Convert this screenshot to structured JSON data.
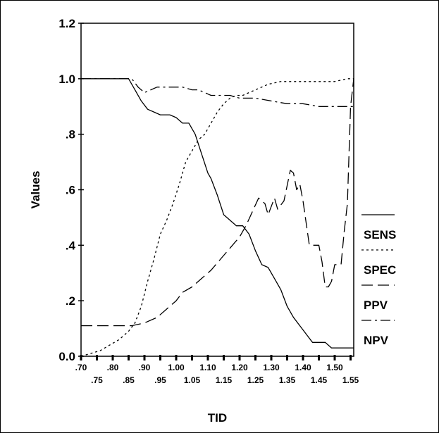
{
  "chart_data": {
    "type": "line",
    "xlabel": "TID",
    "ylabel": "Values",
    "xlim": [
      0.7,
      1.56
    ],
    "ylim": [
      0.0,
      1.2
    ],
    "x_ticks": [
      {
        "v": 0.7,
        "label": ".70",
        "row": 0
      },
      {
        "v": 0.75,
        "label": ".75",
        "row": 1
      },
      {
        "v": 0.8,
        "label": ".80",
        "row": 0
      },
      {
        "v": 0.85,
        "label": ".85",
        "row": 1
      },
      {
        "v": 0.9,
        "label": ".90",
        "row": 0
      },
      {
        "v": 0.95,
        "label": ".95",
        "row": 1
      },
      {
        "v": 1.0,
        "label": "1.00",
        "row": 0
      },
      {
        "v": 1.05,
        "label": "1.05",
        "row": 1
      },
      {
        "v": 1.1,
        "label": "1.10",
        "row": 0
      },
      {
        "v": 1.15,
        "label": "1.15",
        "row": 1
      },
      {
        "v": 1.2,
        "label": "1.20",
        "row": 0
      },
      {
        "v": 1.25,
        "label": "1.25",
        "row": 1
      },
      {
        "v": 1.3,
        "label": "1.30",
        "row": 0
      },
      {
        "v": 1.35,
        "label": "1.35",
        "row": 1
      },
      {
        "v": 1.4,
        "label": "1.40",
        "row": 0
      },
      {
        "v": 1.45,
        "label": "1.45",
        "row": 1
      },
      {
        "v": 1.5,
        "label": "1.50",
        "row": 0
      },
      {
        "v": 1.55,
        "label": "1.55",
        "row": 1
      }
    ],
    "y_ticks": [
      {
        "v": 0.0,
        "label": "0.0"
      },
      {
        "v": 0.2,
        "label": ".2"
      },
      {
        "v": 0.4,
        "label": ".4"
      },
      {
        "v": 0.6,
        "label": ".6"
      },
      {
        "v": 0.8,
        "label": ".8"
      },
      {
        "v": 1.0,
        "label": "1.0"
      },
      {
        "v": 1.2,
        "label": "1.2"
      }
    ],
    "legend_position": "right",
    "series": [
      {
        "name": "SENS",
        "dash": "solid",
        "points": [
          [
            0.7,
            1.0
          ],
          [
            0.85,
            1.0
          ],
          [
            0.87,
            0.96
          ],
          [
            0.89,
            0.92
          ],
          [
            0.91,
            0.89
          ],
          [
            0.93,
            0.88
          ],
          [
            0.95,
            0.87
          ],
          [
            0.98,
            0.87
          ],
          [
            1.0,
            0.86
          ],
          [
            1.02,
            0.84
          ],
          [
            1.04,
            0.84
          ],
          [
            1.06,
            0.8
          ],
          [
            1.08,
            0.73
          ],
          [
            1.1,
            0.66
          ],
          [
            1.11,
            0.64
          ],
          [
            1.13,
            0.58
          ],
          [
            1.15,
            0.51
          ],
          [
            1.17,
            0.49
          ],
          [
            1.19,
            0.47
          ],
          [
            1.21,
            0.47
          ],
          [
            1.23,
            0.44
          ],
          [
            1.25,
            0.38
          ],
          [
            1.27,
            0.33
          ],
          [
            1.29,
            0.32
          ],
          [
            1.31,
            0.28
          ],
          [
            1.33,
            0.24
          ],
          [
            1.35,
            0.18
          ],
          [
            1.37,
            0.14
          ],
          [
            1.39,
            0.11
          ],
          [
            1.41,
            0.08
          ],
          [
            1.43,
            0.05
          ],
          [
            1.47,
            0.05
          ],
          [
            1.49,
            0.03
          ],
          [
            1.56,
            0.03
          ]
        ]
      },
      {
        "name": "SPEC",
        "dash": "dotted",
        "points": [
          [
            0.7,
            0.0
          ],
          [
            0.73,
            0.01
          ],
          [
            0.76,
            0.02
          ],
          [
            0.79,
            0.04
          ],
          [
            0.82,
            0.06
          ],
          [
            0.85,
            0.09
          ],
          [
            0.87,
            0.12
          ],
          [
            0.89,
            0.18
          ],
          [
            0.91,
            0.27
          ],
          [
            0.93,
            0.35
          ],
          [
            0.95,
            0.44
          ],
          [
            0.97,
            0.49
          ],
          [
            0.99,
            0.55
          ],
          [
            1.01,
            0.62
          ],
          [
            1.03,
            0.7
          ],
          [
            1.05,
            0.74
          ],
          [
            1.07,
            0.78
          ],
          [
            1.09,
            0.8
          ],
          [
            1.11,
            0.84
          ],
          [
            1.13,
            0.88
          ],
          [
            1.15,
            0.91
          ],
          [
            1.17,
            0.93
          ],
          [
            1.19,
            0.94
          ],
          [
            1.21,
            0.94
          ],
          [
            1.23,
            0.95
          ],
          [
            1.25,
            0.96
          ],
          [
            1.27,
            0.97
          ],
          [
            1.29,
            0.98
          ],
          [
            1.33,
            0.99
          ],
          [
            1.45,
            0.99
          ],
          [
            1.5,
            0.99
          ],
          [
            1.54,
            1.0
          ],
          [
            1.56,
            1.0
          ]
        ]
      },
      {
        "name": "PPV",
        "dash": "long-dash",
        "points": [
          [
            0.7,
            0.11
          ],
          [
            0.78,
            0.11
          ],
          [
            0.86,
            0.11
          ],
          [
            0.9,
            0.12
          ],
          [
            0.94,
            0.14
          ],
          [
            0.97,
            0.17
          ],
          [
            1.0,
            0.2
          ],
          [
            1.02,
            0.23
          ],
          [
            1.05,
            0.25
          ],
          [
            1.08,
            0.28
          ],
          [
            1.11,
            0.31
          ],
          [
            1.14,
            0.35
          ],
          [
            1.17,
            0.39
          ],
          [
            1.2,
            0.43
          ],
          [
            1.22,
            0.47
          ],
          [
            1.24,
            0.52
          ],
          [
            1.26,
            0.57
          ],
          [
            1.28,
            0.55
          ],
          [
            1.29,
            0.51
          ],
          [
            1.31,
            0.57
          ],
          [
            1.32,
            0.53
          ],
          [
            1.34,
            0.56
          ],
          [
            1.36,
            0.67
          ],
          [
            1.37,
            0.66
          ],
          [
            1.38,
            0.6
          ],
          [
            1.39,
            0.62
          ],
          [
            1.4,
            0.56
          ],
          [
            1.41,
            0.48
          ],
          [
            1.42,
            0.4
          ],
          [
            1.45,
            0.4
          ],
          [
            1.46,
            0.34
          ],
          [
            1.47,
            0.25
          ],
          [
            1.48,
            0.25
          ],
          [
            1.49,
            0.27
          ],
          [
            1.5,
            0.33
          ],
          [
            1.52,
            0.33
          ],
          [
            1.53,
            0.45
          ],
          [
            1.54,
            0.55
          ],
          [
            1.55,
            0.9
          ],
          [
            1.56,
            1.0
          ]
        ]
      },
      {
        "name": "NPV",
        "dash": "dash-dot",
        "points": [
          [
            0.7,
            1.0
          ],
          [
            0.86,
            1.0
          ],
          [
            0.88,
            0.97
          ],
          [
            0.9,
            0.95
          ],
          [
            0.92,
            0.96
          ],
          [
            0.94,
            0.97
          ],
          [
            0.97,
            0.97
          ],
          [
            1.02,
            0.97
          ],
          [
            1.05,
            0.96
          ],
          [
            1.07,
            0.96
          ],
          [
            1.09,
            0.95
          ],
          [
            1.11,
            0.94
          ],
          [
            1.14,
            0.94
          ],
          [
            1.17,
            0.94
          ],
          [
            1.2,
            0.93
          ],
          [
            1.25,
            0.93
          ],
          [
            1.3,
            0.92
          ],
          [
            1.35,
            0.91
          ],
          [
            1.4,
            0.91
          ],
          [
            1.45,
            0.9
          ],
          [
            1.5,
            0.9
          ],
          [
            1.56,
            0.9
          ]
        ]
      }
    ]
  }
}
